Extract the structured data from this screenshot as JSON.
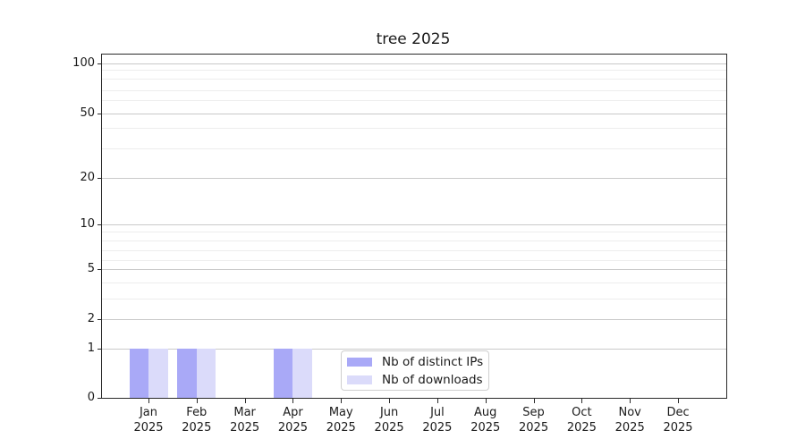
{
  "chart_data": {
    "type": "bar",
    "title": "tree 2025",
    "xlabel": "",
    "ylabel": "",
    "categories": [
      {
        "month": "Jan",
        "year": "2025"
      },
      {
        "month": "Feb",
        "year": "2025"
      },
      {
        "month": "Mar",
        "year": "2025"
      },
      {
        "month": "Apr",
        "year": "2025"
      },
      {
        "month": "May",
        "year": "2025"
      },
      {
        "month": "Jun",
        "year": "2025"
      },
      {
        "month": "Jul",
        "year": "2025"
      },
      {
        "month": "Aug",
        "year": "2025"
      },
      {
        "month": "Sep",
        "year": "2025"
      },
      {
        "month": "Oct",
        "year": "2025"
      },
      {
        "month": "Nov",
        "year": "2025"
      },
      {
        "month": "Dec",
        "year": "2025"
      }
    ],
    "series": [
      {
        "name": "Nb of distinct IPs",
        "color": "#a9a9f7",
        "values": [
          1,
          1,
          0,
          1,
          0,
          0,
          0,
          0,
          0,
          0,
          0,
          0
        ]
      },
      {
        "name": "Nb of downloads",
        "color": "#dbdbfa",
        "values": [
          1,
          1,
          0,
          1,
          0,
          0,
          0,
          0,
          0,
          0,
          0,
          0
        ]
      }
    ],
    "y_axis": {
      "scale": "log-like (symlog/asinh), linear segment 0 to 1",
      "tick_labels": [
        "100",
        "50",
        "20",
        "10",
        "5",
        "2",
        "1",
        "0"
      ],
      "tick_values": [
        100,
        50,
        20,
        10,
        5,
        2,
        1,
        0
      ],
      "minor_grid_values": [
        90,
        80,
        70,
        60,
        40,
        30,
        9,
        8,
        7,
        6,
        4,
        3
      ],
      "range": [
        0,
        100
      ]
    },
    "grid": {
      "horizontal_major": true,
      "horizontal_minor": true,
      "vertical": false
    },
    "legend": {
      "position": "inside bottom, left-of-center",
      "entries": [
        "Nb of distinct IPs",
        "Nb of downloads"
      ]
    }
  },
  "colors": {
    "bar_distinct_ips": "#a9a9f7",
    "bar_downloads": "#dbdbfa",
    "grid_major": "#c9c9c9",
    "grid_minor": "#ededed",
    "spine": "#2a2a2a",
    "text": "#1a1a1a",
    "legend_border": "#cfcfcf",
    "background": "#ffffff"
  }
}
